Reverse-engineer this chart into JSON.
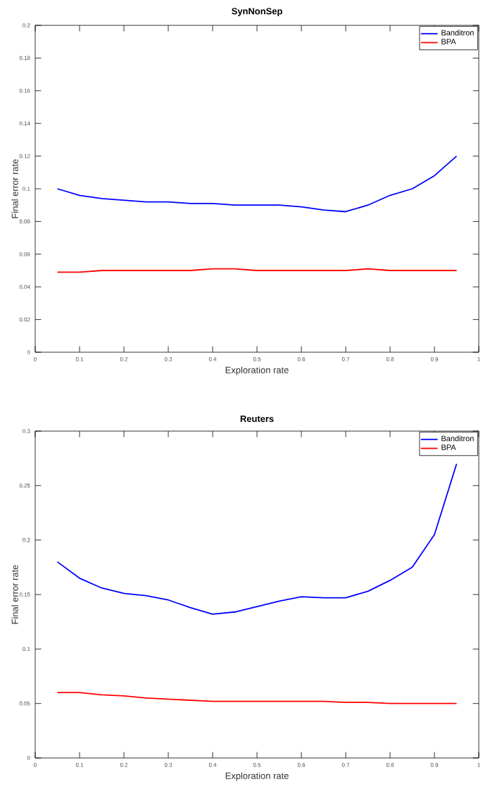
{
  "chart_data": [
    {
      "type": "line",
      "title": "SynNonSep",
      "xlabel": "Exploration rate",
      "ylabel": "Final error rate",
      "x": [
        0.05,
        0.1,
        0.15,
        0.2,
        0.25,
        0.3,
        0.35,
        0.4,
        0.45,
        0.5,
        0.55,
        0.6,
        0.65,
        0.7,
        0.75,
        0.8,
        0.85,
        0.9,
        0.95
      ],
      "series": [
        {
          "name": "Banditron",
          "color": "#0000ff",
          "values": [
            0.1,
            0.096,
            0.094,
            0.093,
            0.092,
            0.092,
            0.091,
            0.091,
            0.09,
            0.09,
            0.09,
            0.089,
            0.087,
            0.086,
            0.09,
            0.096,
            0.1,
            0.108,
            0.12
          ]
        },
        {
          "name": "BPA",
          "color": "#ff0000",
          "values": [
            0.049,
            0.049,
            0.05,
            0.05,
            0.05,
            0.05,
            0.05,
            0.051,
            0.051,
            0.05,
            0.05,
            0.05,
            0.05,
            0.05,
            0.051,
            0.05,
            0.05,
            0.05,
            0.05
          ]
        }
      ],
      "xlim": [
        0,
        1
      ],
      "ylim": [
        0,
        0.2
      ],
      "xticks": [
        0,
        0.1,
        0.2,
        0.3,
        0.4,
        0.5,
        0.6,
        0.7,
        0.8,
        0.9,
        1
      ],
      "yticks": [
        0,
        0.02,
        0.04,
        0.06,
        0.08,
        0.1,
        0.12,
        0.14,
        0.16,
        0.18,
        0.2
      ],
      "legend": "top right",
      "grid": false,
      "marker": "none",
      "line_style": "solid"
    },
    {
      "type": "line",
      "title": "Reuters",
      "xlabel": "Exploration rate",
      "ylabel": "Final error rate",
      "x": [
        0.05,
        0.1,
        0.15,
        0.2,
        0.25,
        0.3,
        0.35,
        0.4,
        0.45,
        0.5,
        0.55,
        0.6,
        0.65,
        0.7,
        0.75,
        0.8,
        0.85,
        0.9,
        0.95
      ],
      "series": [
        {
          "name": "Banditron",
          "color": "#0000ff",
          "values": [
            0.18,
            0.165,
            0.156,
            0.151,
            0.149,
            0.145,
            0.138,
            0.132,
            0.134,
            0.139,
            0.144,
            0.148,
            0.147,
            0.147,
            0.153,
            0.163,
            0.175,
            0.205,
            0.27
          ]
        },
        {
          "name": "BPA",
          "color": "#ff0000",
          "values": [
            0.06,
            0.06,
            0.058,
            0.057,
            0.055,
            0.054,
            0.053,
            0.052,
            0.052,
            0.052,
            0.052,
            0.052,
            0.052,
            0.051,
            0.051,
            0.05,
            0.05,
            0.05,
            0.05
          ]
        }
      ],
      "xlim": [
        0,
        1
      ],
      "ylim": [
        0,
        0.3
      ],
      "xticks": [
        0,
        0.1,
        0.2,
        0.3,
        0.4,
        0.5,
        0.6,
        0.7,
        0.8,
        0.9,
        1
      ],
      "yticks": [
        0,
        0.05,
        0.1,
        0.15,
        0.2,
        0.25,
        0.3
      ],
      "legend": "top right",
      "grid": false,
      "marker": "none",
      "line_style": "solid"
    }
  ]
}
